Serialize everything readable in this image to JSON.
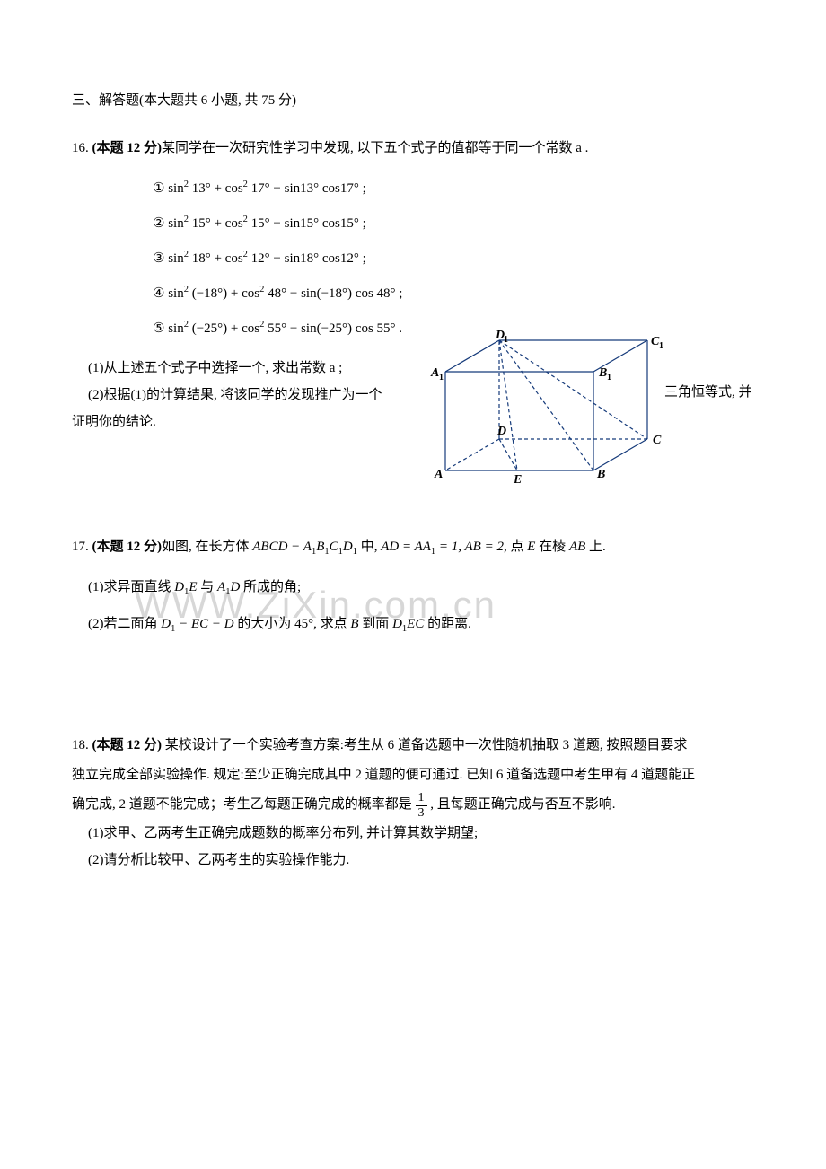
{
  "watermark": "WWW.ZiXin.com.cn",
  "section_title": "三、解答题(本大题共 6 小题, 共 75 分)",
  "p16": {
    "header_prefix": "16. ",
    "header_bold": "(本题 12 分)",
    "header_rest": "某同学在一次研究性学习中发现, 以下五个式子的值都等于同一个常数 a .",
    "formulas": {
      "n1": "①",
      "n2": "②",
      "n3": "③",
      "n4": "④",
      "n5": "⑤",
      "f1a": "sin",
      "f1b": "13° + cos",
      "f1c": "17° − sin13° cos17°",
      "f2a": "sin",
      "f2b": "15° + cos",
      "f2c": "15° − sin15° cos15°",
      "f3a": "sin",
      "f3b": "18° + cos",
      "f3c": "12° − sin18° cos12°",
      "f4a": "sin",
      "f4b": "(−18°) + cos",
      "f4c": "48° − sin(−18°) cos 48°",
      "f5a": "sin",
      "f5b": "(−25°) + cos",
      "f5c": "55° − sin(−25°) cos 55°",
      "sq": "2",
      "end": " ;",
      "end_dot": " ."
    },
    "sub1": "(1)从上述五个式子中选择一个, 求出常数 a ;",
    "sub2_a": "(2)根据(1)的计算结果, 将该同学的发现推广为一个",
    "sub2_b": "证明你的结论.",
    "tail": "三角恒等式, 并"
  },
  "geom": {
    "labels": {
      "A": "A",
      "B": "B",
      "C": "C",
      "D": "D",
      "E": "E",
      "A1": "A",
      "B1": "B",
      "C1": "C",
      "D1": "D",
      "sub1": "1"
    },
    "stroke": "#153a7a",
    "stroke_width": 1.2,
    "dash": "4 3",
    "font_family": "Times New Roman",
    "font_size": 14,
    "font_style": "italic",
    "font_weight": "bold",
    "sub_font_size": 10
  },
  "p17": {
    "header_prefix": "17. ",
    "header_bold": "(本题 12 分)",
    "header_a": "如图, 在长方体 ",
    "header_expr_1": "ABCD − A",
    "header_expr_2": "B",
    "header_expr_3": "C",
    "header_expr_4": "D",
    "header_mid": " 中, ",
    "header_expr_5": "AD = AA",
    "header_expr_6": " = 1, AB = 2",
    "header_b": ", 点 ",
    "header_E": "E",
    "header_c": " 在棱 ",
    "header_AB": "AB",
    "header_d": " 上.",
    "sub1_a": "(1)求异面直线 ",
    "sub1_D1E": "D",
    "sub1_mid": "E",
    "sub1_b": " 与 ",
    "sub1_A1D": "A",
    "sub1_D": "D",
    "sub1_c": " 所成的角;",
    "sub2_a": "(2)若二面角 ",
    "sub2_expr1": "D",
    "sub2_expr2": " − EC − D",
    "sub2_b": " 的大小为 ",
    "sub2_deg": "45°",
    "sub2_c": ", 求点 ",
    "sub2_B": "B",
    "sub2_d": " 到面 ",
    "sub2_D1EC_a": "D",
    "sub2_D1EC_b": "EC",
    "sub2_e": " 的距离.",
    "s1": "1"
  },
  "p18": {
    "header_prefix": "18. ",
    "header_bold": "(本题 12 分)",
    "line1": " 某校设计了一个实验考查方案:考生从 6 道备选题中一次性随机抽取 3 道题, 按照题目要求",
    "line2": "独立完成全部实验操作. 规定:至少正确完成其中 2 道题的便可通过. 已知 6 道备选题中考生甲有 4 道题能正",
    "line3a": "确完成, 2 道题不能完成；考生乙每题正确完成的概率都是 ",
    "line3b": " , 且每题正确完成与否互不影响.",
    "frac_num": "1",
    "frac_den": "3",
    "sub1": "(1)求甲、乙两考生正确完成题数的概率分布列, 并计算其数学期望;",
    "sub2": "(2)请分析比较甲、乙两考生的实验操作能力."
  }
}
